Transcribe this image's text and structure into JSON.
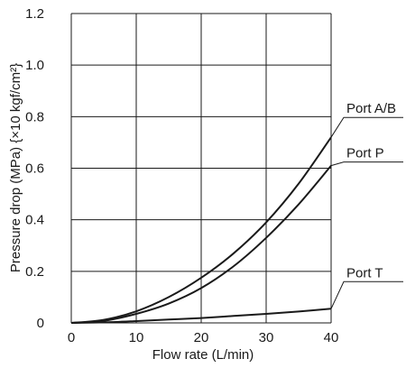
{
  "chart_data": {
    "type": "line",
    "title": "",
    "xlabel": "Flow rate (L/min)",
    "ylabel": "Pressure drop (MPa) {×10 kgf/cm²}",
    "xlim": [
      0,
      40
    ],
    "ylim": [
      0,
      1.2
    ],
    "x_ticks": [
      "0",
      "10",
      "20",
      "30",
      "40"
    ],
    "y_ticks": [
      "0",
      "0.2",
      "0.4",
      "0.6",
      "0.8",
      "1.0",
      "1.2"
    ],
    "grid": true,
    "x": [
      0,
      5,
      10,
      15,
      20,
      25,
      30,
      35,
      40
    ],
    "series": [
      {
        "name": "Port A/B",
        "values": [
          0,
          0.012,
          0.045,
          0.1,
          0.175,
          0.27,
          0.39,
          0.54,
          0.72
        ]
      },
      {
        "name": "Port P",
        "values": [
          0,
          0.008,
          0.035,
          0.075,
          0.135,
          0.22,
          0.33,
          0.46,
          0.61
        ]
      },
      {
        "name": "Port T",
        "values": [
          0,
          0.002,
          0.007,
          0.013,
          0.019,
          0.027,
          0.035,
          0.044,
          0.055
        ]
      }
    ]
  }
}
